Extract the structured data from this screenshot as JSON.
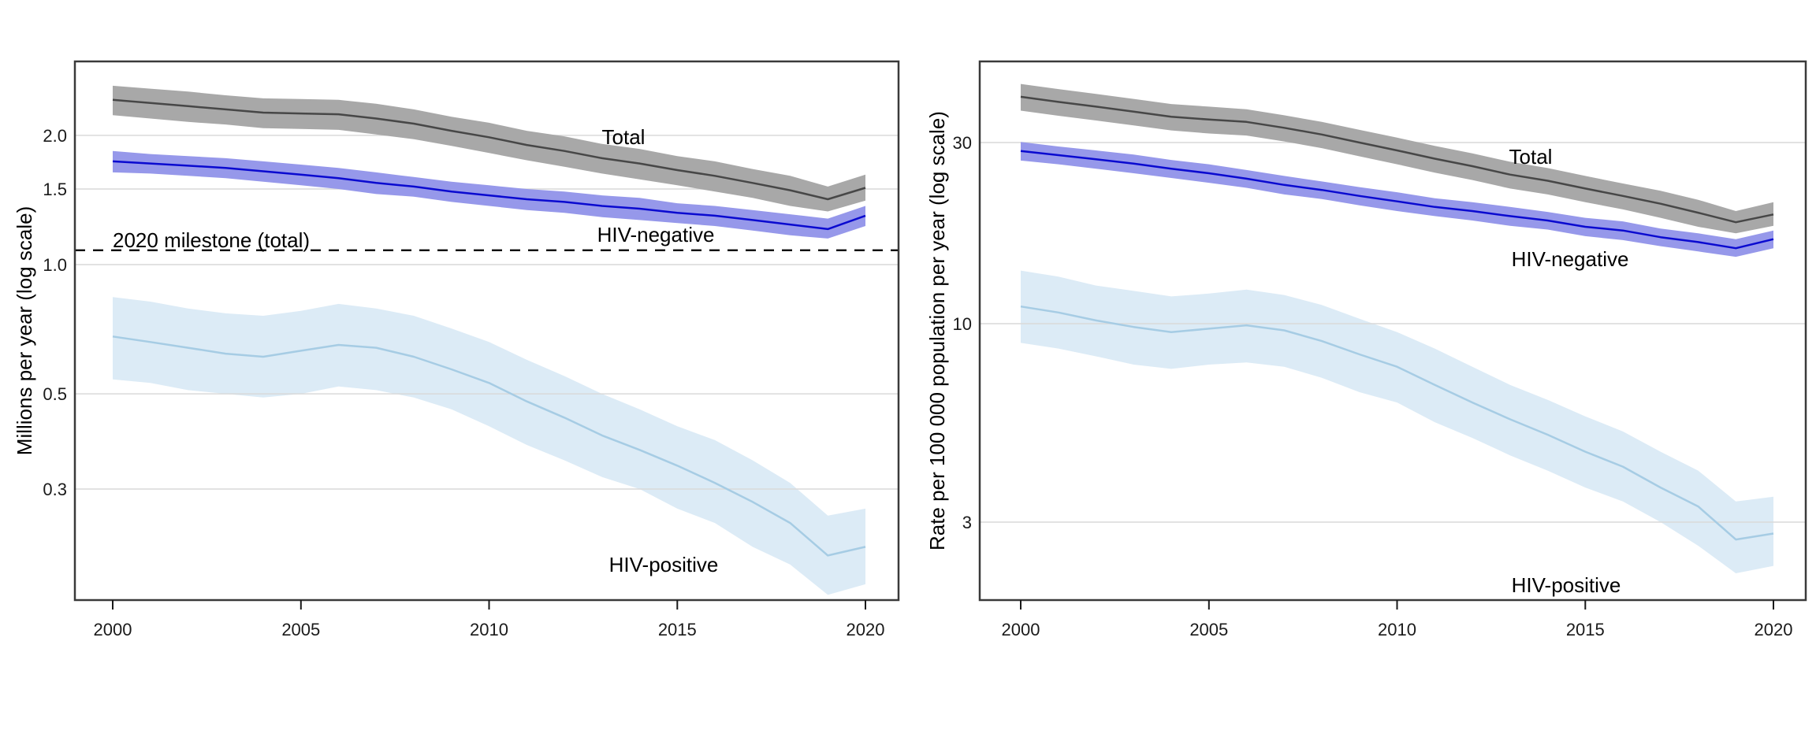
{
  "chart_data": [
    {
      "id": "left",
      "type": "line",
      "title": "",
      "xlabel": "",
      "ylabel": "Millions per year (log scale)",
      "scale": "log",
      "grid": "horizontal",
      "legend_position": "in-plot text annotations",
      "x": [
        2000,
        2001,
        2002,
        2003,
        2004,
        2005,
        2006,
        2007,
        2008,
        2009,
        2010,
        2011,
        2012,
        2013,
        2014,
        2015,
        2016,
        2017,
        2018,
        2019,
        2020
      ],
      "xticks": [
        2000,
        2005,
        2010,
        2015,
        2020
      ],
      "xtick_labels": [
        "2000",
        "2005",
        "2010",
        "2015",
        "2020"
      ],
      "ytick_values": [
        2.0,
        1.5,
        1.0,
        0.5,
        0.3
      ],
      "ytick_labels": [
        "2.0",
        "1.5",
        "1.0",
        "0.5",
        "0.3"
      ],
      "ylim": [
        0.165,
        2.97
      ],
      "labels": {
        "total": "Total",
        "hiv_negative": "HIV-negative",
        "hiv_positive": "HIV-positive"
      },
      "milestone_line": {
        "label": "2020 milestone (total)",
        "value": 1.08,
        "style": "dashed",
        "color": "#000000"
      },
      "series": [
        {
          "name": "Total",
          "line_color": "#474747",
          "band_color": "#a8a8a8",
          "values": [
            2.42,
            2.38,
            2.34,
            2.3,
            2.26,
            2.25,
            2.24,
            2.19,
            2.13,
            2.05,
            1.98,
            1.9,
            1.84,
            1.77,
            1.72,
            1.66,
            1.61,
            1.55,
            1.49,
            1.42,
            1.51
          ],
          "lo": [
            2.23,
            2.19,
            2.15,
            2.12,
            2.08,
            2.07,
            2.06,
            2.01,
            1.96,
            1.89,
            1.82,
            1.75,
            1.69,
            1.63,
            1.58,
            1.53,
            1.48,
            1.43,
            1.37,
            1.33,
            1.41
          ],
          "hi": [
            2.61,
            2.57,
            2.53,
            2.48,
            2.44,
            2.43,
            2.42,
            2.37,
            2.3,
            2.21,
            2.14,
            2.05,
            1.99,
            1.91,
            1.86,
            1.79,
            1.74,
            1.67,
            1.61,
            1.52,
            1.62
          ]
        },
        {
          "name": "HIV-negative",
          "line_color": "#0a0ad0",
          "band_color": "#9698ea",
          "values": [
            1.74,
            1.72,
            1.7,
            1.68,
            1.65,
            1.62,
            1.59,
            1.55,
            1.52,
            1.48,
            1.45,
            1.42,
            1.4,
            1.37,
            1.35,
            1.32,
            1.3,
            1.27,
            1.24,
            1.21,
            1.3
          ],
          "lo": [
            1.64,
            1.63,
            1.61,
            1.59,
            1.56,
            1.53,
            1.5,
            1.46,
            1.44,
            1.4,
            1.37,
            1.34,
            1.32,
            1.29,
            1.27,
            1.25,
            1.23,
            1.2,
            1.17,
            1.15,
            1.23
          ],
          "hi": [
            1.84,
            1.81,
            1.79,
            1.77,
            1.74,
            1.71,
            1.68,
            1.64,
            1.6,
            1.56,
            1.53,
            1.5,
            1.48,
            1.45,
            1.43,
            1.39,
            1.37,
            1.34,
            1.31,
            1.28,
            1.37
          ]
        },
        {
          "name": "HIV-positive",
          "line_color": "#a6cce4",
          "band_color": "#dcebf6",
          "values": [
            0.68,
            0.66,
            0.64,
            0.62,
            0.61,
            0.63,
            0.65,
            0.64,
            0.61,
            0.57,
            0.53,
            0.48,
            0.44,
            0.4,
            0.37,
            0.34,
            0.31,
            0.28,
            0.25,
            0.21,
            0.22
          ],
          "lo": [
            0.54,
            0.53,
            0.51,
            0.5,
            0.49,
            0.5,
            0.52,
            0.51,
            0.49,
            0.46,
            0.42,
            0.38,
            0.35,
            0.32,
            0.3,
            0.27,
            0.25,
            0.22,
            0.2,
            0.17,
            0.18
          ],
          "hi": [
            0.84,
            0.82,
            0.79,
            0.77,
            0.76,
            0.78,
            0.81,
            0.79,
            0.76,
            0.71,
            0.66,
            0.6,
            0.55,
            0.5,
            0.46,
            0.42,
            0.39,
            0.35,
            0.31,
            0.26,
            0.27
          ]
        }
      ]
    },
    {
      "id": "right",
      "type": "line",
      "title": "",
      "xlabel": "",
      "ylabel": "Rate per 100 000 population per year (log scale)",
      "scale": "log",
      "grid": "horizontal",
      "legend_position": "in-plot text annotations",
      "x": [
        2000,
        2001,
        2002,
        2003,
        2004,
        2005,
        2006,
        2007,
        2008,
        2009,
        2010,
        2011,
        2012,
        2013,
        2014,
        2015,
        2016,
        2017,
        2018,
        2019,
        2020
      ],
      "xticks": [
        2000,
        2005,
        2010,
        2015,
        2020
      ],
      "xtick_labels": [
        "2000",
        "2005",
        "2010",
        "2015",
        "2020"
      ],
      "ytick_values": [
        30,
        10,
        3
      ],
      "ytick_labels": [
        "30",
        "10",
        "3"
      ],
      "ylim": [
        1.9,
        49
      ],
      "labels": {
        "total": "Total",
        "hiv_negative": "HIV-negative",
        "hiv_positive": "HIV-positive"
      },
      "series": [
        {
          "name": "Total",
          "line_color": "#474747",
          "band_color": "#a8a8a8",
          "values": [
            39.6,
            38.4,
            37.3,
            36.2,
            35.1,
            34.5,
            34.0,
            32.8,
            31.5,
            30.0,
            28.6,
            27.2,
            26.0,
            24.7,
            23.8,
            22.7,
            21.7,
            20.7,
            19.6,
            18.5,
            19.4
          ],
          "lo": [
            36.4,
            35.3,
            34.3,
            33.3,
            32.3,
            31.7,
            31.3,
            30.2,
            29.0,
            27.6,
            26.3,
            25.0,
            23.9,
            22.7,
            21.9,
            20.9,
            20.0,
            19.0,
            18.0,
            17.3,
            18.1
          ],
          "hi": [
            42.8,
            41.5,
            40.3,
            39.1,
            37.9,
            37.3,
            36.7,
            35.4,
            34.0,
            32.4,
            30.9,
            29.4,
            28.1,
            26.7,
            25.7,
            24.5,
            23.4,
            22.4,
            21.2,
            19.8,
            20.9
          ]
        },
        {
          "name": "HIV-negative",
          "line_color": "#0a0ad0",
          "band_color": "#9698ea",
          "values": [
            28.5,
            27.8,
            27.1,
            26.4,
            25.6,
            24.9,
            24.1,
            23.2,
            22.5,
            21.7,
            21.0,
            20.3,
            19.8,
            19.2,
            18.7,
            18.0,
            17.6,
            16.9,
            16.4,
            15.8,
            16.7
          ],
          "lo": [
            26.9,
            26.3,
            25.6,
            24.9,
            24.2,
            23.5,
            22.8,
            21.9,
            21.3,
            20.5,
            19.8,
            19.2,
            18.7,
            18.1,
            17.7,
            17.0,
            16.6,
            16.0,
            15.5,
            15.0,
            15.8
          ],
          "hi": [
            30.1,
            29.3,
            28.6,
            27.9,
            27.0,
            26.3,
            25.4,
            24.5,
            23.7,
            22.9,
            22.2,
            21.4,
            20.9,
            20.3,
            19.7,
            19.0,
            18.6,
            17.8,
            17.3,
            16.7,
            17.6
          ]
        },
        {
          "name": "HIV-positive",
          "line_color": "#a6cce4",
          "band_color": "#dcebf6",
          "values": [
            11.1,
            10.7,
            10.2,
            9.8,
            9.5,
            9.7,
            9.9,
            9.6,
            9.0,
            8.3,
            7.7,
            6.9,
            6.2,
            5.6,
            5.1,
            4.6,
            4.2,
            3.7,
            3.3,
            2.7,
            2.8
          ],
          "lo": [
            8.9,
            8.6,
            8.2,
            7.8,
            7.6,
            7.8,
            7.9,
            7.7,
            7.2,
            6.6,
            6.2,
            5.5,
            5.0,
            4.5,
            4.1,
            3.7,
            3.4,
            3.0,
            2.6,
            2.2,
            2.3
          ],
          "hi": [
            13.8,
            13.3,
            12.6,
            12.2,
            11.8,
            12.0,
            12.3,
            11.9,
            11.2,
            10.3,
            9.5,
            8.6,
            7.7,
            6.9,
            6.3,
            5.7,
            5.2,
            4.6,
            4.1,
            3.4,
            3.5
          ]
        }
      ]
    }
  ],
  "colors": {
    "background": "#ffffff",
    "gridline": "#d9d9d9",
    "panel_border": "#3a3a3a",
    "total_line": "#474747",
    "total_band": "#a8a8a8",
    "hiv_negative_line": "#0a0ad0",
    "hiv_negative_band": "#9698ea",
    "hiv_positive_line": "#a6cce4",
    "hiv_positive_band": "#dcebf6",
    "milestone_dash": "#000000",
    "text": "#000000"
  }
}
